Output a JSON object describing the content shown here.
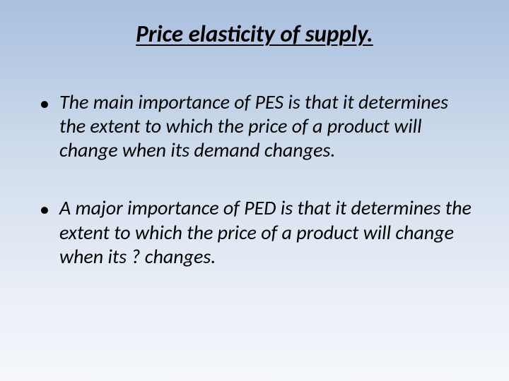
{
  "slide": {
    "title": "Price elasticity of supply.",
    "bullets": [
      {
        "text": "The main importance of PES is that it determines the extent to which the price of a product will change when its demand changes."
      },
      {
        "text": "A major importance of PED is that it determines the extent to which the price of a product will change when its ? changes."
      }
    ],
    "background_gradient_top": "#a8bfde",
    "background_gradient_bottom": "#f5f7fb",
    "title_fontsize": 33,
    "body_fontsize": 28,
    "text_color": "#000000"
  }
}
